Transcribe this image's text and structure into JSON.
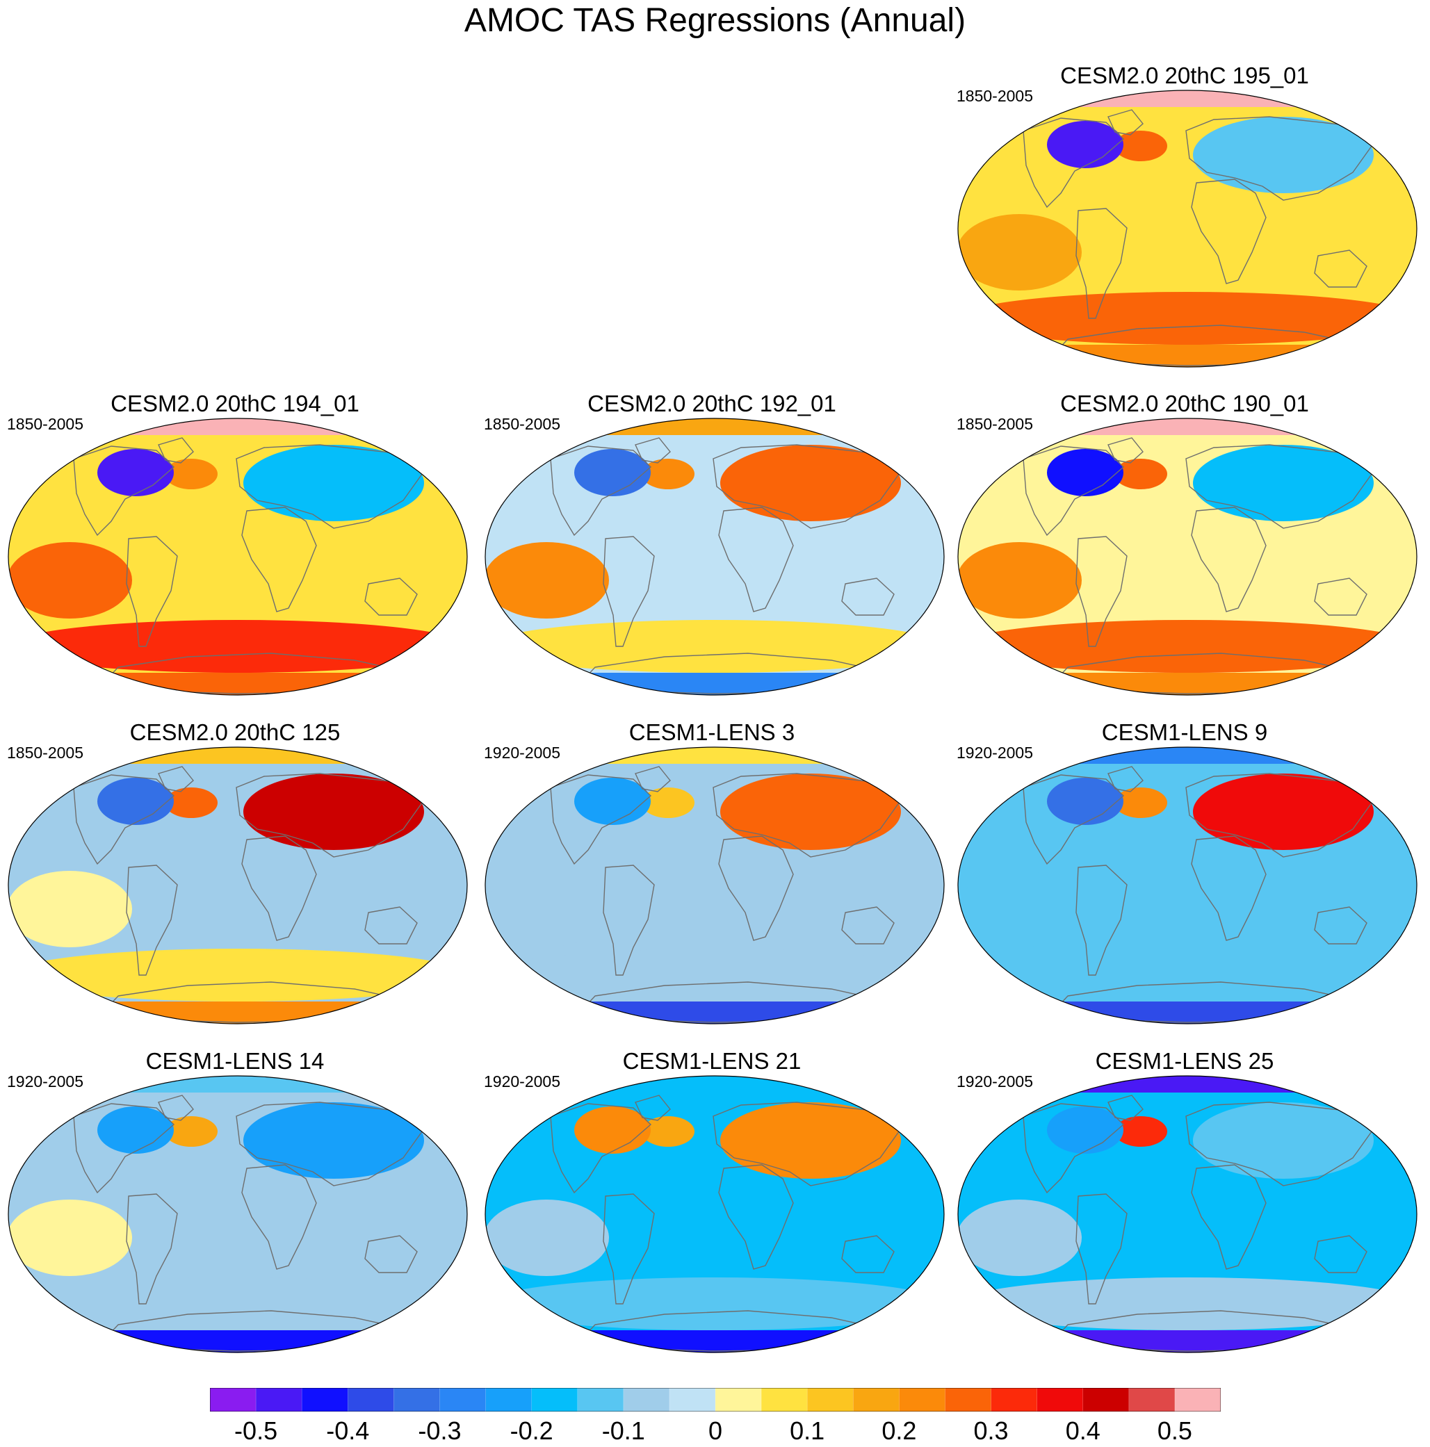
{
  "chart_data": {
    "type": "heatmap",
    "title": "AMOC TAS Regressions (Annual)",
    "projection": "Robinson global map",
    "colorbar": {
      "levels": [
        -0.5,
        -0.45,
        -0.4,
        -0.35,
        -0.3,
        -0.25,
        -0.2,
        -0.15,
        -0.1,
        -0.05,
        0,
        0.05,
        0.1,
        0.15,
        0.2,
        0.25,
        0.3,
        0.35,
        0.4,
        0.45,
        0.5
      ],
      "colors": [
        "#8a1cf0",
        "#4a19f5",
        "#1010ff",
        "#2e4be8",
        "#3470e6",
        "#2a86f5",
        "#17a0fa",
        "#05befa",
        "#58c6f2",
        "#a0cdea",
        "#c0e2f5",
        "#fff59a",
        "#ffe240",
        "#fcc521",
        "#f9a611",
        "#fb8a0a",
        "#fa6408",
        "#fc2a0a",
        "#f00a0a",
        "#cc0000",
        "#e04848",
        "#fab2b6"
      ],
      "tick_labels": [
        "-0.5",
        "-0.4",
        "-0.3",
        "-0.2",
        "-0.1",
        "0",
        "0.1",
        "0.2",
        "0.3",
        "0.4",
        "0.5"
      ]
    },
    "panels": [
      {
        "title": "CESM2.0 20thC 195_01",
        "period": "1850-2005",
        "arctic": 0.55,
        "nw_atlantic": -0.45,
        "n_atlantic": 0.3,
        "eurasia": -0.1,
        "tropics": 0.1,
        "e_pacific": 0.2,
        "southern_ocean": 0.3,
        "antarctic": 0.25
      },
      {
        "title": "CESM2.0 20thC 194_01",
        "period": "1850-2005",
        "arctic": 0.55,
        "nw_atlantic": -0.45,
        "n_atlantic": 0.25,
        "eurasia": -0.15,
        "tropics": 0.1,
        "e_pacific": 0.3,
        "southern_ocean": 0.35,
        "antarctic": 0.3
      },
      {
        "title": "CESM2.0 20thC 192_01",
        "period": "1850-2005",
        "arctic": 0.2,
        "nw_atlantic": -0.3,
        "n_atlantic": 0.25,
        "eurasia": 0.3,
        "tropics": -0.02,
        "e_pacific": 0.25,
        "southern_ocean": 0.1,
        "antarctic": -0.25
      },
      {
        "title": "CESM2.0 20thC 190_01",
        "period": "1850-2005",
        "arctic": 0.55,
        "nw_atlantic": -0.4,
        "n_atlantic": 0.3,
        "eurasia": -0.15,
        "tropics": 0.05,
        "e_pacific": 0.25,
        "southern_ocean": 0.3,
        "antarctic": 0.25
      },
      {
        "title": "CESM2.0 20thC 125",
        "period": "1850-2005",
        "arctic": 0.15,
        "nw_atlantic": -0.3,
        "n_atlantic": 0.3,
        "eurasia": 0.45,
        "tropics": -0.05,
        "e_pacific": 0.05,
        "southern_ocean": 0.1,
        "antarctic": 0.25
      },
      {
        "title": "CESM1-LENS 3",
        "period": "1920-2005",
        "arctic": 0.1,
        "nw_atlantic": -0.2,
        "n_atlantic": 0.15,
        "eurasia": 0.3,
        "tropics": -0.08,
        "e_pacific": -0.05,
        "southern_ocean": -0.05,
        "antarctic": -0.35
      },
      {
        "title": "CESM1-LENS 9",
        "period": "1920-2005",
        "arctic": -0.25,
        "nw_atlantic": -0.3,
        "n_atlantic": 0.25,
        "eurasia": 0.4,
        "tropics": -0.12,
        "e_pacific": -0.1,
        "southern_ocean": -0.1,
        "antarctic": -0.35
      },
      {
        "title": "CESM1-LENS 14",
        "period": "1920-2005",
        "arctic": -0.1,
        "nw_atlantic": -0.2,
        "n_atlantic": 0.2,
        "eurasia": -0.2,
        "tropics": -0.08,
        "e_pacific": 0.05,
        "southern_ocean": -0.05,
        "antarctic": -0.4
      },
      {
        "title": "CESM1-LENS 21",
        "period": "1920-2005",
        "arctic": -0.15,
        "nw_atlantic": 0.25,
        "n_atlantic": 0.2,
        "eurasia": 0.25,
        "tropics": -0.15,
        "e_pacific": -0.08,
        "southern_ocean": -0.1,
        "antarctic": -0.4
      },
      {
        "title": "CESM1-LENS 25",
        "period": "1920-2005",
        "arctic": -0.45,
        "nw_atlantic": -0.2,
        "n_atlantic": 0.35,
        "eurasia": -0.1,
        "tropics": -0.15,
        "e_pacific": -0.05,
        "southern_ocean": -0.05,
        "antarctic": -0.45
      }
    ]
  }
}
